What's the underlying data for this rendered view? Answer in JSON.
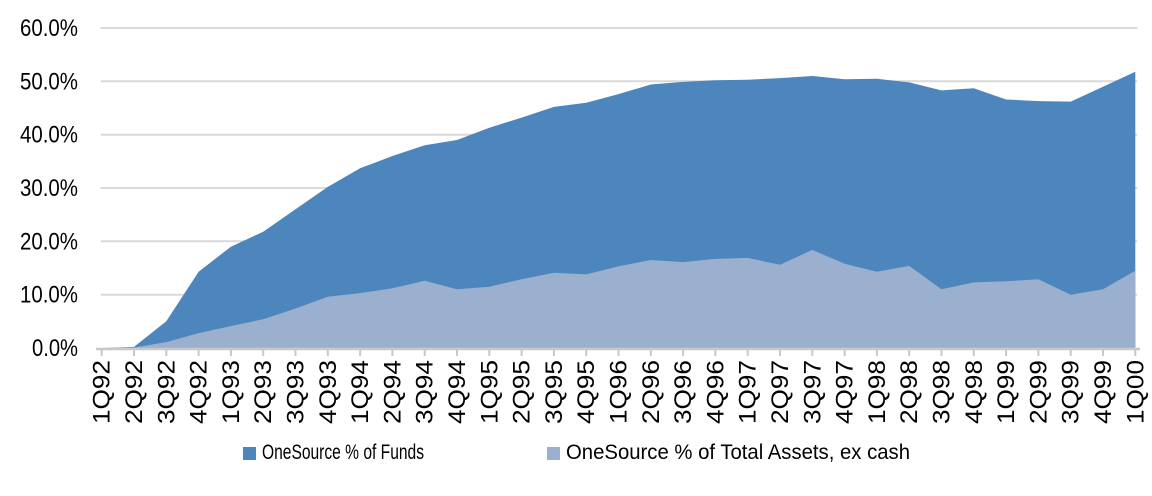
{
  "chart": {
    "background": "#FFFFFF",
    "grid_color": "#D9D9D9",
    "axis_color": "#C8C8C8",
    "text_color": "#000000"
  },
  "chart_data": {
    "type": "area",
    "mode": "overlay",
    "title": "",
    "xlabel": "",
    "ylabel": "",
    "grid": true,
    "legend_position": "bottom",
    "ylim": [
      0,
      60
    ],
    "y_tick_labels": [
      "0.0%",
      "10.0%",
      "20.0%",
      "30.0%",
      "40.0%",
      "50.0%",
      "60.0%"
    ],
    "categories": [
      "1Q92",
      "2Q92",
      "3Q92",
      "4Q92",
      "1Q93",
      "2Q93",
      "3Q93",
      "4Q93",
      "1Q94",
      "2Q94",
      "3Q94",
      "4Q94",
      "1Q95",
      "2Q95",
      "3Q95",
      "4Q95",
      "1Q96",
      "2Q96",
      "3Q96",
      "4Q96",
      "1Q97",
      "2Q97",
      "3Q97",
      "4Q97",
      "1Q98",
      "2Q98",
      "3Q98",
      "4Q98",
      "1Q99",
      "2Q99",
      "3Q99",
      "4Q99",
      "1Q00"
    ],
    "series": [
      {
        "name": "OneSource % of Funds",
        "color": "#4C86BD",
        "values": [
          0,
          0.2,
          5,
          14.3,
          19,
          21.8,
          26,
          30.2,
          33.7,
          36,
          38,
          39,
          41.3,
          43.2,
          45.2,
          46,
          47.6,
          49.4,
          49.9,
          50.2,
          50.3,
          50.6,
          51,
          50.4,
          50.5,
          49.8,
          48.3,
          48.7,
          46.6,
          46.3,
          46.2,
          49,
          51.8
        ]
      },
      {
        "name": "OneSource % of Total Assets, ex cash",
        "color": "#9AB0CE",
        "values": [
          0,
          0.1,
          1.1,
          2.8,
          4.1,
          5.4,
          7.4,
          9.6,
          10.3,
          11.2,
          12.6,
          11,
          11.5,
          12.9,
          14.1,
          13.8,
          15.3,
          16.5,
          16.1,
          16.7,
          16.9,
          15.6,
          18.4,
          15.8,
          14.3,
          15.4,
          11,
          12.3,
          12.5,
          12.9,
          10,
          11,
          14.5
        ]
      }
    ]
  }
}
